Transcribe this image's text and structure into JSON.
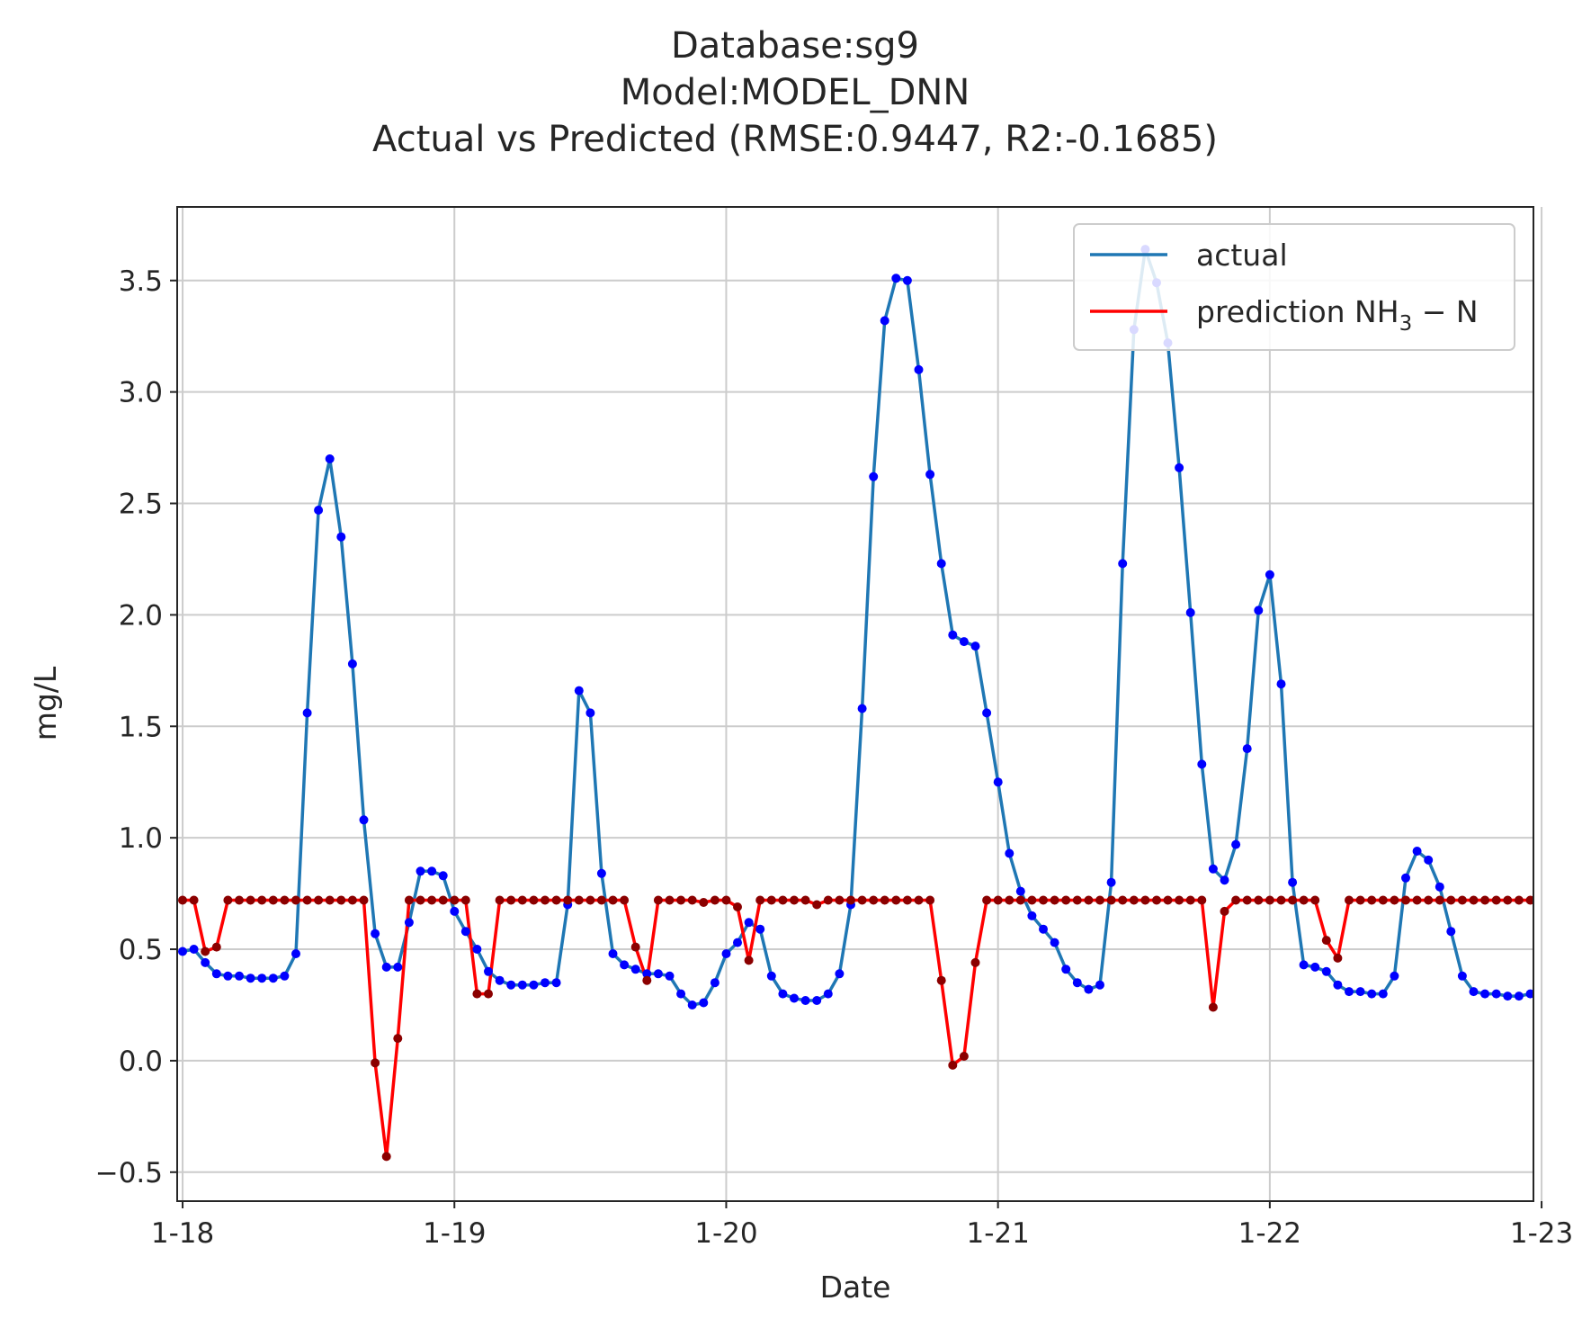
{
  "chart_data": {
    "type": "line",
    "title": [
      "Database:sg9",
      "Model:MODEL_DNN",
      "Actual vs Predicted (RMSE:0.9447, R2:-0.1685)"
    ],
    "xlabel": "Date",
    "ylabel": "mg/L",
    "xlim": [
      -0.02,
      4.97
    ],
    "ylim": [
      -0.63,
      3.83
    ],
    "x_ticks": [
      {
        "value": 0,
        "label": "1-18"
      },
      {
        "value": 1,
        "label": "1-19"
      },
      {
        "value": 2,
        "label": "1-20"
      },
      {
        "value": 3,
        "label": "1-21"
      },
      {
        "value": 4,
        "label": "1-22"
      },
      {
        "value": 5,
        "label": "1-23"
      }
    ],
    "y_ticks": [
      {
        "value": -0.5,
        "label": "−0.5"
      },
      {
        "value": 0.0,
        "label": "0.0"
      },
      {
        "value": 0.5,
        "label": "0.5"
      },
      {
        "value": 1.0,
        "label": "1.0"
      },
      {
        "value": 1.5,
        "label": "1.5"
      },
      {
        "value": 2.0,
        "label": "2.0"
      },
      {
        "value": 2.5,
        "label": "2.5"
      },
      {
        "value": 3.0,
        "label": "3.0"
      },
      {
        "value": 3.5,
        "label": "3.5"
      }
    ],
    "grid": true,
    "legend_position": "top-right",
    "x_step_days": 0.041667,
    "series": [
      {
        "name": "actual",
        "color": "#1f77b4",
        "marker_color": "#0000ff",
        "values": [
          0.49,
          0.5,
          0.44,
          0.39,
          0.38,
          0.38,
          0.37,
          0.37,
          0.37,
          0.38,
          0.48,
          1.56,
          2.47,
          2.7,
          2.35,
          1.78,
          1.08,
          0.57,
          0.42,
          0.42,
          0.62,
          0.85,
          0.85,
          0.83,
          0.67,
          0.58,
          0.5,
          0.4,
          0.36,
          0.34,
          0.34,
          0.34,
          0.35,
          0.35,
          0.7,
          1.66,
          1.56,
          0.84,
          0.48,
          0.43,
          0.41,
          0.39,
          0.39,
          0.38,
          0.3,
          0.25,
          0.26,
          0.35,
          0.48,
          0.53,
          0.62,
          0.59,
          0.38,
          0.3,
          0.28,
          0.27,
          0.27,
          0.3,
          0.39,
          0.7,
          1.58,
          2.62,
          3.32,
          3.51,
          3.5,
          3.1,
          2.63,
          2.23,
          1.91,
          1.88,
          1.86,
          1.56,
          1.25,
          0.93,
          0.76,
          0.65,
          0.59,
          0.53,
          0.41,
          0.35,
          0.32,
          0.34,
          0.8,
          2.23,
          3.28,
          3.64,
          3.49,
          3.22,
          2.66,
          2.01,
          1.33,
          0.86,
          0.81,
          0.97,
          1.4,
          2.02,
          2.18,
          1.69,
          0.8,
          0.43,
          0.42,
          0.4,
          0.34,
          0.31,
          0.31,
          0.3,
          0.3,
          0.38,
          0.82,
          0.94,
          0.9,
          0.78,
          0.58,
          0.38,
          0.31,
          0.3,
          0.3,
          0.29,
          0.29,
          0.3
        ]
      },
      {
        "name": "prediction NH3−N",
        "color": "#ff0000",
        "marker_color": "#8b0000",
        "values": [
          0.72,
          0.72,
          0.49,
          0.51,
          0.72,
          0.72,
          0.72,
          0.72,
          0.72,
          0.72,
          0.72,
          0.72,
          0.72,
          0.72,
          0.72,
          0.72,
          0.72,
          -0.01,
          -0.43,
          0.1,
          0.72,
          0.72,
          0.72,
          0.72,
          0.72,
          0.72,
          0.3,
          0.3,
          0.72,
          0.72,
          0.72,
          0.72,
          0.72,
          0.72,
          0.72,
          0.72,
          0.72,
          0.72,
          0.72,
          0.72,
          0.51,
          0.36,
          0.72,
          0.72,
          0.72,
          0.72,
          0.71,
          0.72,
          0.72,
          0.69,
          0.45,
          0.72,
          0.72,
          0.72,
          0.72,
          0.72,
          0.7,
          0.72,
          0.72,
          0.72,
          0.72,
          0.72,
          0.72,
          0.72,
          0.72,
          0.72,
          0.72,
          0.36,
          -0.02,
          0.02,
          0.44,
          0.72,
          0.72,
          0.72,
          0.72,
          0.72,
          0.72,
          0.72,
          0.72,
          0.72,
          0.72,
          0.72,
          0.72,
          0.72,
          0.72,
          0.72,
          0.72,
          0.72,
          0.72,
          0.72,
          0.72,
          0.24,
          0.67,
          0.72,
          0.72,
          0.72,
          0.72,
          0.72,
          0.72,
          0.72,
          0.72,
          0.54,
          0.46,
          0.72,
          0.72,
          0.72,
          0.72,
          0.72,
          0.72,
          0.72,
          0.72,
          0.72,
          0.72,
          0.72,
          0.72,
          0.72,
          0.72,
          0.72,
          0.72,
          0.72,
          0.72,
          0.72
        ]
      }
    ]
  }
}
